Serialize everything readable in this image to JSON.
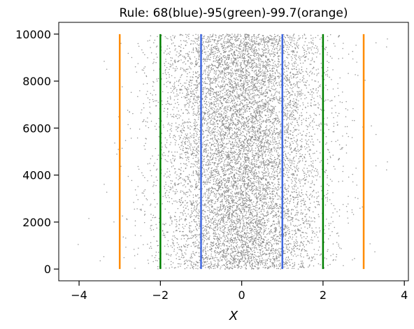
{
  "chart_data": {
    "type": "scatter",
    "title": "Rule: 68(blue)-95(green)-99.7(orange)",
    "xlabel": "X",
    "ylabel": "",
    "xlim": [
      -4.5,
      4.1
    ],
    "ylim": [
      -500,
      10500
    ],
    "xticks": [
      -4,
      -2,
      0,
      2,
      4
    ],
    "yticks": [
      0,
      2000,
      4000,
      6000,
      8000,
      10000
    ],
    "grid": false,
    "series": [
      {
        "description": "10000 samples from a standard normal distribution; x = sample value, y = sample index",
        "n": 10000,
        "distribution": "normal",
        "mean": 0,
        "std": 1,
        "color": "#808080"
      }
    ],
    "vertical_lines": [
      {
        "x": -1,
        "ymin": 0,
        "ymax": 10000,
        "color": "#4169e1"
      },
      {
        "x": 1,
        "ymin": 0,
        "ymax": 10000,
        "color": "#4169e1"
      },
      {
        "x": -2,
        "ymin": 0,
        "ymax": 10000,
        "color": "#008000"
      },
      {
        "x": 2,
        "ymin": 0,
        "ymax": 10000,
        "color": "#008000"
      },
      {
        "x": -3,
        "ymin": 0,
        "ymax": 10000,
        "color": "#ff8c00"
      },
      {
        "x": 3,
        "ymin": 0,
        "ymax": 10000,
        "color": "#ff8c00"
      }
    ]
  }
}
